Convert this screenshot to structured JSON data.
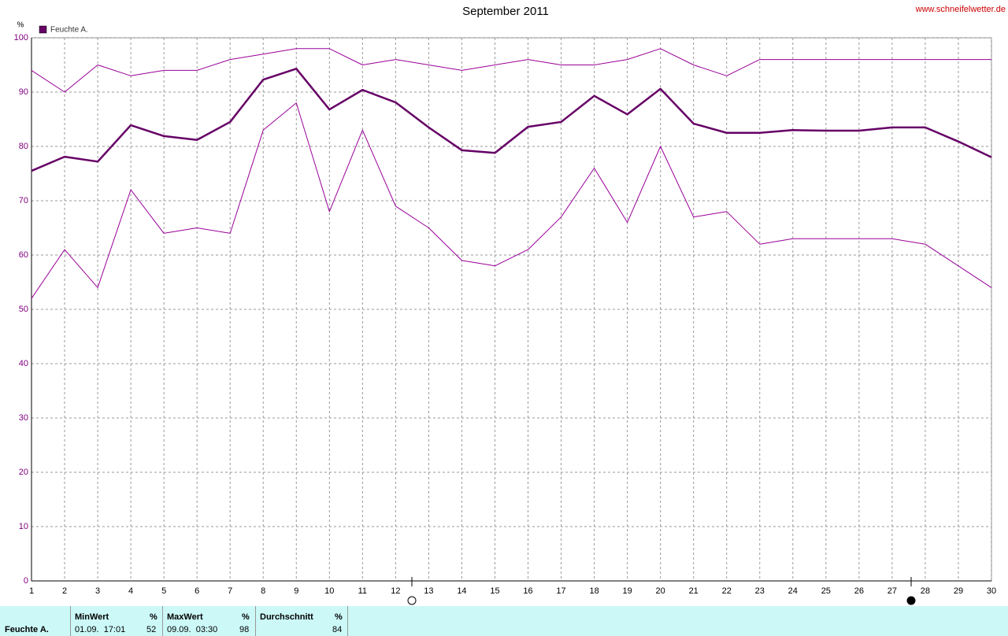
{
  "chart_data": {
    "type": "line",
    "title": "September 2011",
    "source": "www.schneifelwetter.de",
    "y_label": "%",
    "x": [
      1,
      2,
      3,
      4,
      5,
      6,
      7,
      8,
      9,
      10,
      11,
      12,
      13,
      14,
      15,
      16,
      17,
      18,
      19,
      20,
      21,
      22,
      23,
      24,
      25,
      26,
      27,
      28,
      29,
      30
    ],
    "xlim": [
      1,
      30
    ],
    "xticks": [
      1,
      2,
      3,
      4,
      5,
      6,
      7,
      8,
      9,
      10,
      11,
      12,
      13,
      14,
      15,
      16,
      17,
      18,
      19,
      20,
      21,
      22,
      23,
      24,
      25,
      26,
      27,
      28,
      29,
      30
    ],
    "ylim": [
      0,
      100
    ],
    "yticks": [
      0,
      10,
      20,
      30,
      40,
      50,
      60,
      70,
      80,
      90,
      100
    ],
    "grid": true,
    "legend": "top-left",
    "series": [
      {
        "name": "Feuchte A.",
        "color": "#660066",
        "width": 2.5,
        "values": [
          75.5,
          78.1,
          77.2,
          83.9,
          81.9,
          81.2,
          84.5,
          92.3,
          94.3,
          86.8,
          90.4,
          88.1,
          83.5,
          79.3,
          78.8,
          83.6,
          84.5,
          89.3,
          85.9,
          90.6,
          84.2,
          82.5,
          82.5,
          83,
          82.9,
          82.9,
          83.5,
          83.5,
          80.9,
          78
        ]
      },
      {
        "color": "#990099",
        "width": 1,
        "values": [
          94,
          90,
          95,
          93,
          94,
          94,
          96,
          97,
          98,
          98,
          95,
          96,
          95,
          94,
          95,
          96,
          95,
          95,
          96,
          98,
          95,
          93,
          96,
          96,
          96,
          96,
          96,
          96,
          96,
          96
        ]
      },
      {
        "color": "#990099",
        "width": 1,
        "values": [
          52,
          61,
          54,
          72,
          64,
          65,
          64,
          83,
          88,
          68,
          83,
          69,
          65,
          59,
          58,
          61,
          67,
          76,
          66,
          80,
          67,
          68,
          62,
          63,
          63,
          63,
          63,
          62,
          58,
          54
        ]
      }
    ]
  },
  "summary": {
    "label": "Feuchte A.",
    "min": {
      "header": "MinWert",
      "unit": "%",
      "time": "01.09.  17:01",
      "value": "52"
    },
    "max": {
      "header": "MaxWert",
      "unit": "%",
      "time": "09.09.  03:30",
      "value": "98"
    },
    "avg": {
      "header": "Durchschnitt",
      "unit": "%",
      "value": "84"
    }
  }
}
